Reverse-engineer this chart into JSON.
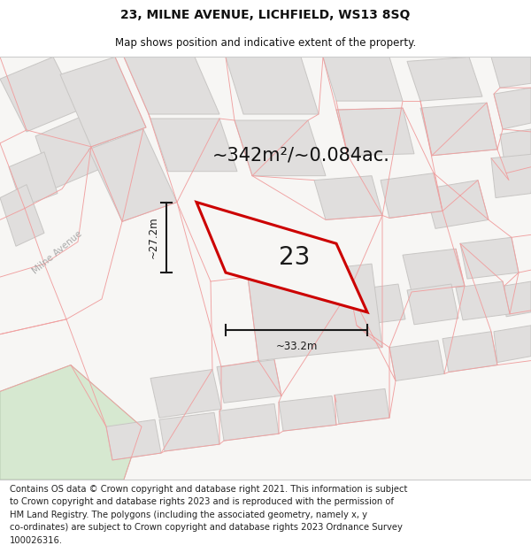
{
  "title": "23, MILNE AVENUE, LICHFIELD, WS13 8SQ",
  "subtitle": "Map shows position and indicative extent of the property.",
  "area_text": "~342m²/~0.084ac.",
  "dim_width": "~33.2m",
  "dim_height": "~27.2m",
  "plot_number": "23",
  "map_bg": "#f7f6f4",
  "bld_fill": "#e0dedd",
  "bld_edge": "#c8c6c4",
  "prop_fill": "#f7f6f4",
  "red_outline": "#cc0000",
  "green_fill": "#d6e8d0",
  "green_edge": "#b8ccb2",
  "prop_line": "#f0a0a0",
  "bg_white": "#ffffff",
  "dim_color": "#1a1a1a",
  "road_label_color": "#aaaaaa",
  "title_fontsize": 10,
  "subtitle_fontsize": 8.5,
  "area_fontsize": 15,
  "plot_num_fontsize": 20,
  "footer_fontsize": 7.2,
  "footer_lines": [
    "Contains OS data © Crown copyright and database right 2021. This information is subject",
    "to Crown copyright and database rights 2023 and is reproduced with the permission of",
    "HM Land Registry. The polygons (including the associated geometry, namely x, y",
    "co-ordinates) are subject to Crown copyright and database rights 2023 Ordnance Survey",
    "100026316."
  ]
}
